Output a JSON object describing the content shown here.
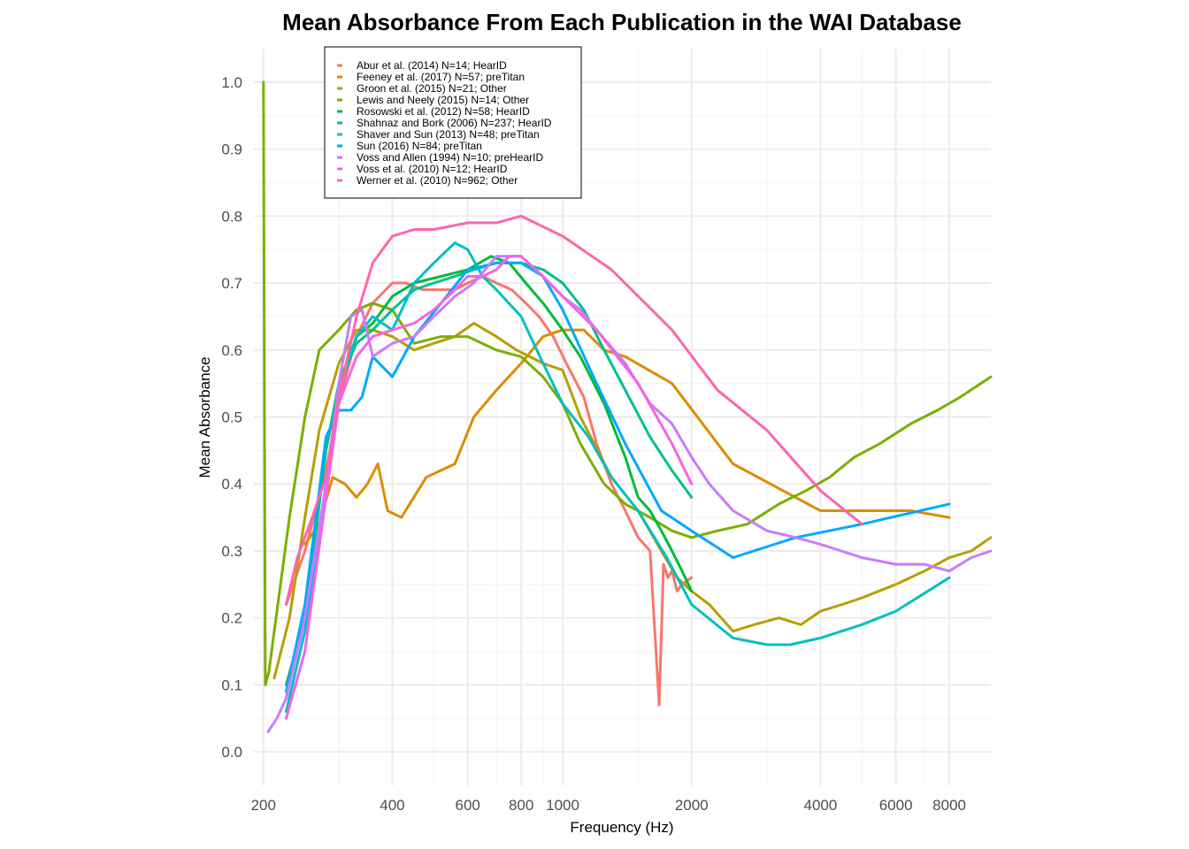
{
  "chart_data": {
    "type": "line",
    "title": "Mean Absorbance From Each Publication in the WAI Database",
    "xlabel": "Frequency (Hz)",
    "ylabel": "Mean Absorbance",
    "x_scale": "log",
    "xlim": [
      190,
      10000
    ],
    "ylim": [
      -0.05,
      1.05
    ],
    "x_ticks": [
      {
        "value": 200,
        "label": "200"
      },
      {
        "value": 400,
        "label": "400"
      },
      {
        "value": 600,
        "label": "600"
      },
      {
        "value": 800,
        "label": "800"
      },
      {
        "value": 1000,
        "label": "1000"
      },
      {
        "value": 2000,
        "label": "2000"
      },
      {
        "value": 4000,
        "label": "4000"
      },
      {
        "value": 6000,
        "label": "6000"
      },
      {
        "value": 8000,
        "label": "8000"
      }
    ],
    "x_minor": [
      300,
      500,
      700,
      900,
      1500,
      3000,
      5000,
      7000
    ],
    "y_ticks": [
      {
        "value": 0.0,
        "label": "0.0"
      },
      {
        "value": 0.1,
        "label": "0.1"
      },
      {
        "value": 0.2,
        "label": "0.2"
      },
      {
        "value": 0.3,
        "label": "0.3"
      },
      {
        "value": 0.4,
        "label": "0.4"
      },
      {
        "value": 0.5,
        "label": "0.5"
      },
      {
        "value": 0.6,
        "label": "0.6"
      },
      {
        "value": 0.7,
        "label": "0.7"
      },
      {
        "value": 0.8,
        "label": "0.8"
      },
      {
        "value": 0.9,
        "label": "0.9"
      },
      {
        "value": 1.0,
        "label": "1.0"
      }
    ],
    "grid": true,
    "legend_position": "top-left inside",
    "series": [
      {
        "name": "Abur et al. (2014) N=14; HearID",
        "color": "#F8766D",
        "x": [
          226,
          250,
          280,
          300,
          330,
          360,
          400,
          430,
          470,
          520,
          560,
          600,
          650,
          700,
          760,
          820,
          880,
          950,
          1020,
          1120,
          1200,
          1300,
          1400,
          1500,
          1600,
          1680,
          1720,
          1760,
          1800,
          1850,
          1900,
          2000
        ],
        "y": [
          0.22,
          0.3,
          0.42,
          0.52,
          0.62,
          0.67,
          0.7,
          0.7,
          0.69,
          0.69,
          0.69,
          0.7,
          0.71,
          0.7,
          0.69,
          0.67,
          0.65,
          0.62,
          0.58,
          0.53,
          0.46,
          0.4,
          0.36,
          0.32,
          0.3,
          0.07,
          0.28,
          0.26,
          0.27,
          0.24,
          0.25,
          0.26
        ]
      },
      {
        "name": "Feeney et al. (2017) N=57; preTitan",
        "color": "#DE8C00",
        "x": [
          250,
          270,
          290,
          310,
          330,
          350,
          370,
          390,
          420,
          480,
          560,
          620,
          700,
          800,
          900,
          1000,
          1120,
          1250,
          1400,
          1800,
          2500,
          4000,
          5000,
          6500,
          8000
        ],
        "y": [
          0.31,
          0.34,
          0.41,
          0.4,
          0.38,
          0.4,
          0.43,
          0.36,
          0.35,
          0.41,
          0.43,
          0.5,
          0.54,
          0.58,
          0.62,
          0.63,
          0.63,
          0.6,
          0.59,
          0.55,
          0.43,
          0.36,
          0.36,
          0.36,
          0.35
        ]
      },
      {
        "name": "Groon et al. (2015) N=21; Other",
        "color": "#B79F00",
        "x": [
          212,
          230,
          250,
          270,
          300,
          330,
          360,
          400,
          450,
          500,
          560,
          620,
          700,
          780,
          900,
          1000,
          1100,
          1300,
          1500,
          1700,
          1850,
          2000,
          2200,
          2500,
          2800,
          3200,
          3600,
          4000,
          4500,
          5000,
          6000,
          7000,
          8000,
          9000,
          10000
        ],
        "y": [
          0.11,
          0.2,
          0.35,
          0.48,
          0.58,
          0.63,
          0.63,
          0.62,
          0.6,
          0.61,
          0.62,
          0.64,
          0.62,
          0.6,
          0.58,
          0.57,
          0.5,
          0.41,
          0.36,
          0.3,
          0.26,
          0.24,
          0.22,
          0.18,
          0.19,
          0.2,
          0.19,
          0.21,
          0.22,
          0.23,
          0.25,
          0.27,
          0.29,
          0.3,
          0.32
        ]
      },
      {
        "name": "Lewis and Neely (2015) N=14; Other",
        "color": "#7CAE00",
        "x": [
          200,
          202,
          206,
          212,
          230,
          250,
          270,
          300,
          330,
          360,
          400,
          450,
          520,
          600,
          700,
          800,
          900,
          1000,
          1100,
          1250,
          1400,
          1600,
          1800,
          2000,
          2300,
          2700,
          3200,
          3700,
          4200,
          4800,
          5500,
          6500,
          7500,
          8500,
          10000
        ],
        "y": [
          1.0,
          0.1,
          0.12,
          0.18,
          0.35,
          0.5,
          0.6,
          0.63,
          0.66,
          0.67,
          0.66,
          0.61,
          0.62,
          0.62,
          0.6,
          0.59,
          0.56,
          0.52,
          0.46,
          0.4,
          0.37,
          0.35,
          0.33,
          0.32,
          0.33,
          0.34,
          0.37,
          0.39,
          0.41,
          0.44,
          0.46,
          0.49,
          0.51,
          0.53,
          0.56
        ]
      },
      {
        "name": "Rosowski et al. (2012) N=58; HearID",
        "color": "#00BA38",
        "x": [
          226,
          250,
          280,
          300,
          330,
          360,
          400,
          450,
          520,
          600,
          680,
          750,
          820,
          900,
          1000,
          1100,
          1250,
          1400,
          1500,
          1600,
          1700,
          1800,
          1900,
          2000
        ],
        "y": [
          0.1,
          0.2,
          0.45,
          0.55,
          0.62,
          0.64,
          0.68,
          0.7,
          0.71,
          0.72,
          0.74,
          0.73,
          0.7,
          0.67,
          0.63,
          0.59,
          0.52,
          0.44,
          0.38,
          0.36,
          0.33,
          0.3,
          0.27,
          0.24
        ]
      },
      {
        "name": "Shahnaz and Bork (2006) N=237; HearID",
        "color": "#00C08B",
        "x": [
          226,
          250,
          280,
          300,
          330,
          360,
          400,
          450,
          500,
          560,
          620,
          700,
          800,
          900,
          1000,
          1120,
          1250,
          1400,
          1600,
          1800,
          2000
        ],
        "y": [
          0.08,
          0.2,
          0.45,
          0.55,
          0.61,
          0.63,
          0.66,
          0.69,
          0.7,
          0.71,
          0.72,
          0.73,
          0.73,
          0.72,
          0.7,
          0.66,
          0.6,
          0.54,
          0.47,
          0.42,
          0.38
        ]
      },
      {
        "name": "Shaver and Sun (2013) N=48; preTitan",
        "color": "#00BFC4",
        "x": [
          226,
          250,
          280,
          300,
          330,
          360,
          400,
          450,
          500,
          560,
          600,
          650,
          700,
          800,
          900,
          1000,
          1150,
          1300,
          1500,
          1750,
          2000,
          2500,
          3000,
          3400,
          4000,
          5000,
          6000,
          8000
        ],
        "y": [
          0.06,
          0.18,
          0.4,
          0.54,
          0.62,
          0.65,
          0.63,
          0.7,
          0.73,
          0.76,
          0.75,
          0.71,
          0.69,
          0.65,
          0.58,
          0.52,
          0.47,
          0.41,
          0.36,
          0.29,
          0.22,
          0.17,
          0.16,
          0.16,
          0.17,
          0.19,
          0.21,
          0.26
        ]
      },
      {
        "name": "Sun (2016) N=84; preTitan",
        "color": "#00A9FF",
        "x": [
          226,
          250,
          280,
          300,
          320,
          340,
          360,
          400,
          450,
          520,
          600,
          700,
          800,
          900,
          1000,
          1200,
          1400,
          1700,
          2000,
          2500,
          3500,
          5000,
          8000
        ],
        "y": [
          0.09,
          0.22,
          0.47,
          0.51,
          0.51,
          0.53,
          0.59,
          0.56,
          0.62,
          0.67,
          0.72,
          0.73,
          0.73,
          0.71,
          0.66,
          0.55,
          0.46,
          0.36,
          0.33,
          0.29,
          0.32,
          0.34,
          0.37
        ]
      },
      {
        "name": "Voss and Allen (1994) N=10; preHearID",
        "color": "#C77CFF",
        "x": [
          205,
          215,
          226,
          250,
          280,
          300,
          320,
          340,
          360,
          400,
          450,
          500,
          560,
          620,
          700,
          800,
          900,
          1000,
          1100,
          1200,
          1400,
          1600,
          1800,
          2000,
          2200,
          2500,
          3000,
          3500,
          4000,
          5000,
          6000,
          7000,
          8000,
          9000,
          10000
        ],
        "y": [
          0.03,
          0.05,
          0.08,
          0.2,
          0.4,
          0.55,
          0.65,
          0.66,
          0.59,
          0.61,
          0.62,
          0.65,
          0.68,
          0.7,
          0.74,
          0.74,
          0.71,
          0.68,
          0.66,
          0.63,
          0.58,
          0.52,
          0.49,
          0.44,
          0.4,
          0.36,
          0.33,
          0.32,
          0.31,
          0.29,
          0.28,
          0.28,
          0.27,
          0.29,
          0.3
        ]
      },
      {
        "name": "Voss et al. (2010) N=12; HearID",
        "color": "#F564E3",
        "x": [
          226,
          250,
          280,
          300,
          330,
          360,
          400,
          450,
          500,
          560,
          600,
          650,
          700,
          750,
          800,
          900,
          1000,
          1200,
          1500,
          1800,
          2000
        ],
        "y": [
          0.05,
          0.15,
          0.38,
          0.52,
          0.59,
          0.62,
          0.63,
          0.64,
          0.66,
          0.69,
          0.71,
          0.71,
          0.72,
          0.74,
          0.74,
          0.71,
          0.68,
          0.63,
          0.55,
          0.46,
          0.4
        ]
      },
      {
        "name": "Werner et al. (2010) N=962; Other",
        "color": "#FF64B0",
        "x": [
          226,
          240,
          260,
          280,
          300,
          330,
          360,
          400,
          450,
          500,
          600,
          700,
          800,
          1000,
          1300,
          1800,
          2300,
          3000,
          4000,
          5000
        ],
        "y": [
          0.22,
          0.29,
          0.35,
          0.41,
          0.53,
          0.65,
          0.73,
          0.77,
          0.78,
          0.78,
          0.79,
          0.79,
          0.8,
          0.77,
          0.72,
          0.63,
          0.54,
          0.48,
          0.39,
          0.34
        ]
      }
    ]
  }
}
